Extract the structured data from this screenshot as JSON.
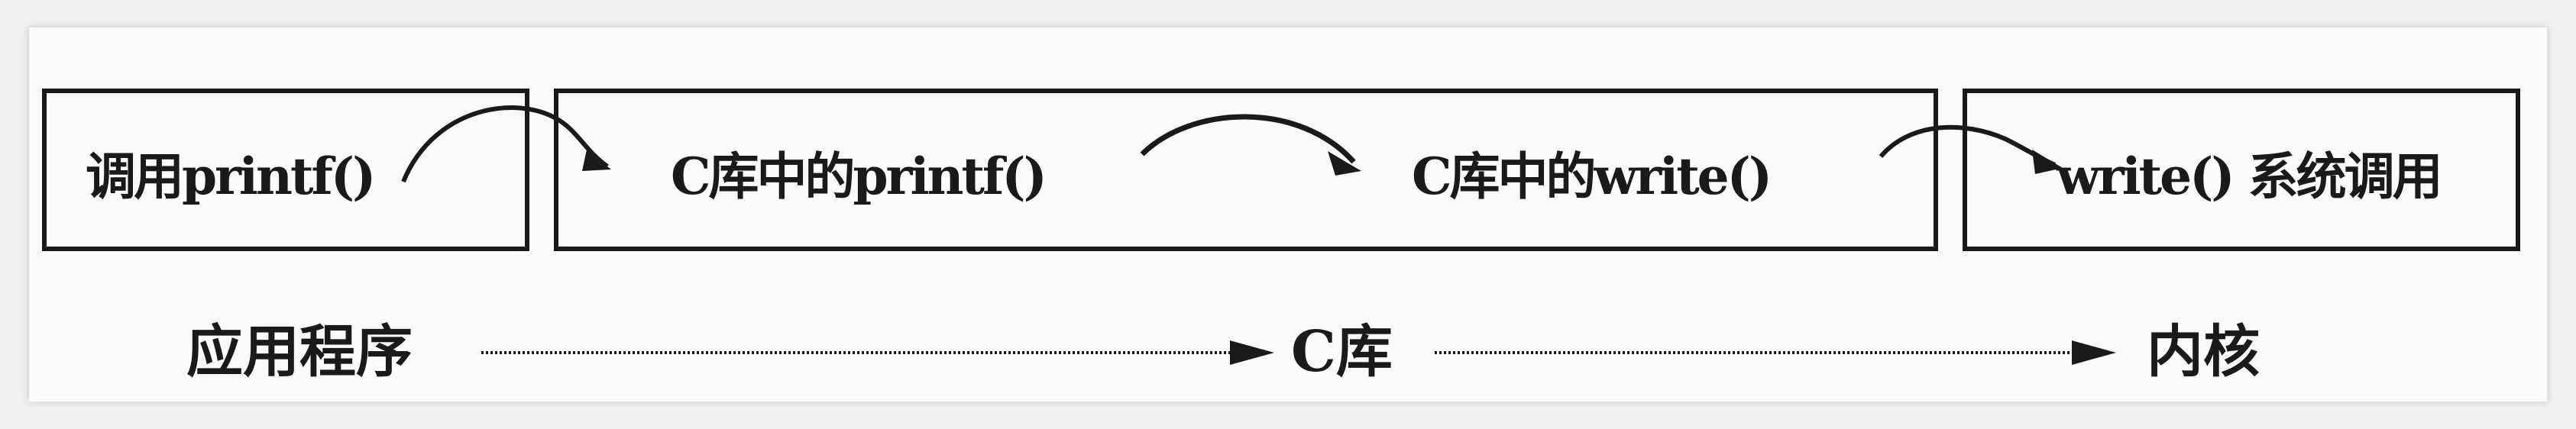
{
  "diagram": {
    "boxes": [
      {
        "label": "调用printf()"
      },
      {
        "label_left": "C库中的printf()",
        "label_right": "C库中的write()"
      },
      {
        "label": "write() 系统调用"
      }
    ],
    "layers": [
      "应用程序",
      "C库",
      "内核"
    ]
  }
}
